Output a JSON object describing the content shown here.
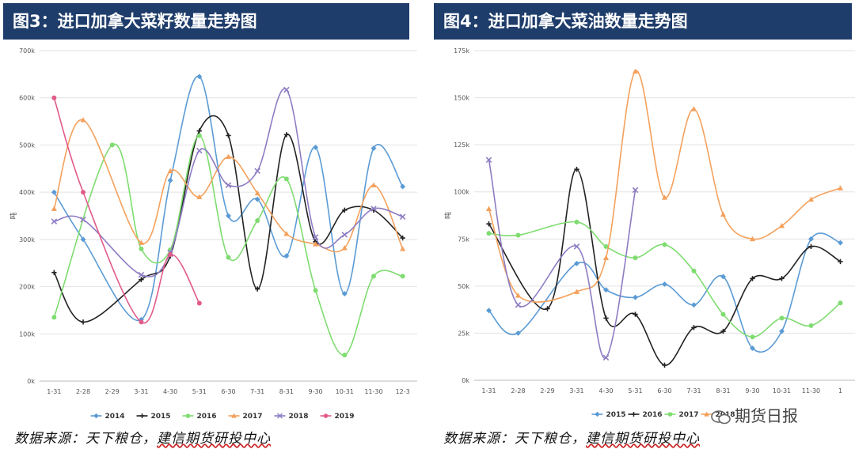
{
  "left_panel": {
    "title": "图3：进口加拿大菜籽数量走势图",
    "source_prefix": "数据来源：天下粮仓，",
    "source_suffix": "建信期货研投中心"
  },
  "right_panel": {
    "title": "图4：进口加拿大菜油数量走势图",
    "source_prefix": "数据来源：天下粮仓，",
    "source_suffix": "建信期货研投中心"
  },
  "watermark": "期货日报",
  "chart_data": [
    {
      "type": "line",
      "title": "进口加拿大菜籽数量走势图",
      "ylabel": "吨",
      "ylim": [
        0,
        700000
      ],
      "yticks": [
        0,
        100000,
        200000,
        300000,
        400000,
        500000,
        600000,
        700000
      ],
      "ytick_labels": [
        "0k",
        "100k",
        "200k",
        "300k",
        "400k",
        "500k",
        "600k",
        "700k"
      ],
      "grid": true,
      "legend_position": "bottom",
      "categories": [
        "1-31",
        "2-28",
        "2-29",
        "3-31",
        "4-30",
        "5-31",
        "6-30",
        "7-31",
        "8-31",
        "9-30",
        "10-31",
        "11-30",
        "12-3"
      ],
      "series": [
        {
          "name": "2014",
          "color": "#5b9bd5",
          "marker": "diamond",
          "values": [
            400000,
            300000,
            null,
            130000,
            425000,
            645000,
            350000,
            385000,
            265000,
            495000,
            185000,
            493000,
            412000
          ]
        },
        {
          "name": "2015",
          "color": "#222222",
          "marker": "plus",
          "values": [
            230000,
            125000,
            null,
            215000,
            265000,
            530000,
            520000,
            195000,
            522000,
            295000,
            362000,
            362000,
            303000
          ]
        },
        {
          "name": "2016",
          "color": "#7fdc70",
          "marker": "circle",
          "values": [
            135000,
            null,
            500000,
            280000,
            278000,
            520000,
            262000,
            340000,
            428000,
            192000,
            55000,
            222000,
            222000
          ]
        },
        {
          "name": "2017",
          "color": "#f4a15d",
          "marker": "triangle",
          "values": [
            365000,
            553000,
            null,
            293000,
            445000,
            390000,
            475000,
            398000,
            312000,
            290000,
            282000,
            415000,
            280000
          ]
        },
        {
          "name": "2018",
          "color": "#8e7cc3",
          "marker": "x",
          "values": [
            338000,
            342000,
            null,
            225000,
            272000,
            488000,
            415000,
            445000,
            617000,
            305000,
            310000,
            365000,
            348000
          ]
        },
        {
          "name": "2019",
          "color": "#e15b8a",
          "marker": "circle",
          "values": [
            600000,
            400000,
            null,
            125000,
            268000,
            165000,
            null,
            null,
            null,
            null,
            null,
            null,
            null
          ]
        }
      ]
    },
    {
      "type": "line",
      "title": "进口加拿大菜油数量走势图",
      "ylabel": "吨",
      "ylim": [
        0,
        175000
      ],
      "yticks": [
        0,
        25000,
        50000,
        75000,
        100000,
        125000,
        150000,
        175000
      ],
      "ytick_labels": [
        "0k",
        "25k",
        "50k",
        "75k",
        "100k",
        "125k",
        "150k",
        "175k"
      ],
      "grid": true,
      "legend_position": "bottom",
      "categories": [
        "1-31",
        "2-28",
        "2-29",
        "3-31",
        "4-30",
        "5-31",
        "6-30",
        "7-31",
        "8-31",
        "9-30",
        "10-31",
        "11-30",
        "1"
      ],
      "series": [
        {
          "name": "2015",
          "color": "#5b9bd5",
          "marker": "diamond",
          "values": [
            37000,
            25000,
            null,
            62000,
            48000,
            44000,
            51000,
            40000,
            55000,
            17000,
            26000,
            75000,
            73000
          ]
        },
        {
          "name": "2016",
          "color": "#222222",
          "marker": "plus",
          "values": [
            83000,
            null,
            38000,
            112000,
            33000,
            35000,
            8000,
            28000,
            26000,
            54000,
            54000,
            71000,
            63000
          ]
        },
        {
          "name": "2017",
          "color": "#7fdc70",
          "marker": "circle",
          "values": [
            78000,
            77000,
            null,
            84000,
            71000,
            65000,
            72000,
            58000,
            35000,
            23000,
            33000,
            29000,
            41000
          ]
        },
        {
          "name": "2018",
          "color": "#f4a15d",
          "marker": "triangle",
          "values": [
            91000,
            45000,
            null,
            47000,
            65000,
            164000,
            97000,
            144000,
            88000,
            75000,
            82000,
            96000,
            102000
          ]
        },
        {
          "name": "",
          "color": "#8e7cc3",
          "marker": "x",
          "values": [
            117000,
            40000,
            null,
            71000,
            12000,
            101000,
            null,
            null,
            null,
            null,
            null,
            null,
            null
          ]
        }
      ]
    }
  ]
}
